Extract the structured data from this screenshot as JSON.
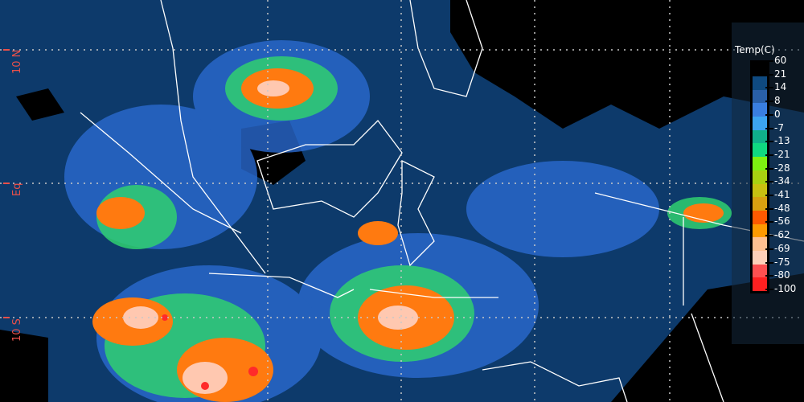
{
  "map": {
    "latitude_labels": [
      "10 N",
      "Eq",
      "10 S"
    ],
    "background_color": "#0d3a6b",
    "grid": "dotted",
    "coastlines_color": "#ffffff"
  },
  "legend": {
    "title": "Temp(C)",
    "labels": [
      "60",
      "21",
      "14",
      "8",
      "0",
      "-7",
      "-13",
      "-21",
      "-28",
      "-34",
      "-41",
      "-48",
      "-56",
      "-62",
      "-69",
      "-75",
      "-80",
      "-100"
    ],
    "colors": [
      "#0f4a80",
      "#2a5fa8",
      "#3a7ee0",
      "#3ca4f0",
      "#10b08a",
      "#10d880",
      "#7ef010",
      "#a8d010",
      "#c8c010",
      "#d8a010",
      "#ff5a00",
      "#ff9a00",
      "#ffc090",
      "#ffd0b8",
      "#ff5050",
      "#ff2020"
    ]
  }
}
